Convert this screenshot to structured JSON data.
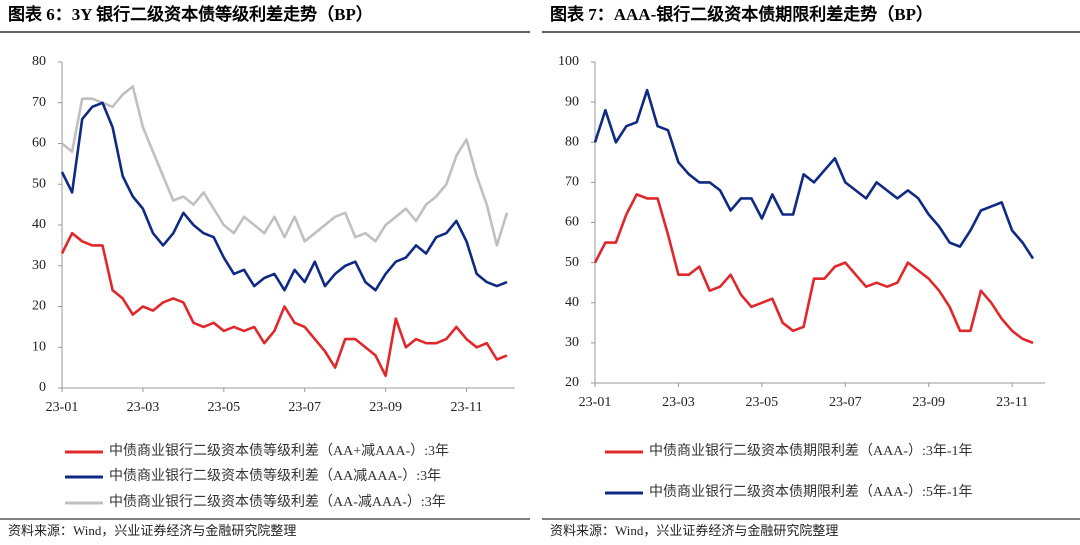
{
  "chart_data": [
    {
      "type": "line",
      "title": "图表 6：3Y 银行二级资本债等级利差走势（BP）",
      "source": "资料来源：Wind，兴业证券经济与金融研究院整理",
      "categories": [
        "23-01",
        null,
        null,
        null,
        null,
        null,
        null,
        null,
        "23-03",
        null,
        null,
        null,
        null,
        null,
        null,
        null,
        "23-05",
        null,
        null,
        null,
        null,
        null,
        null,
        null,
        "23-07",
        null,
        null,
        null,
        null,
        null,
        null,
        null,
        "23-09",
        null,
        null,
        null,
        null,
        null,
        null,
        null,
        "23-11",
        null,
        null,
        null,
        null
      ],
      "ylim": [
        0,
        80
      ],
      "yticks": [
        0,
        10,
        20,
        30,
        40,
        50,
        60,
        70,
        80
      ],
      "series": [
        {
          "name": "中债商业银行二级资本债等级利差（AA+减AAA-）:3年",
          "color": "#e0282b",
          "values": [
            33,
            38,
            36,
            35,
            35,
            24,
            22,
            18,
            20,
            19,
            21,
            22,
            21,
            16,
            15,
            16,
            14,
            15,
            14,
            15,
            11,
            14,
            20,
            16,
            15,
            12,
            9,
            5,
            12,
            12,
            10,
            8,
            3,
            17,
            10,
            12,
            11,
            11,
            12,
            15,
            12,
            10,
            11,
            7,
            8
          ]
        },
        {
          "name": "中债商业银行二级资本债等级利差（AA减AAA-）:3年",
          "color": "#102a83",
          "values": [
            53,
            48,
            66,
            69,
            70,
            64,
            52,
            47,
            44,
            38,
            35,
            38,
            43,
            40,
            38,
            37,
            32,
            28,
            29,
            25,
            27,
            28,
            24,
            29,
            26,
            31,
            25,
            28,
            30,
            31,
            26,
            24,
            28,
            31,
            32,
            35,
            33,
            37,
            38,
            41,
            36,
            28,
            26,
            25,
            26
          ]
        },
        {
          "name": "中债商业银行二级资本债等级利差（AA-减AAA-）:3年",
          "color": "#c0c0c0",
          "values": [
            60,
            58,
            71,
            71,
            70,
            69,
            72,
            74,
            64,
            58,
            52,
            46,
            47,
            45,
            48,
            44,
            40,
            38,
            42,
            40,
            38,
            42,
            37,
            42,
            36,
            38,
            40,
            42,
            43,
            37,
            38,
            36,
            40,
            42,
            44,
            41,
            45,
            47,
            50,
            57,
            61,
            52,
            45,
            35,
            43
          ]
        }
      ]
    },
    {
      "type": "line",
      "title": "图表 7：AAA-银行二级资本债期限利差走势（BP）",
      "source": "资料来源：Wind，兴业证券经济与金融研究院整理",
      "categories": [
        "23-01",
        null,
        null,
        null,
        null,
        null,
        null,
        null,
        "23-03",
        null,
        null,
        null,
        null,
        null,
        null,
        null,
        "23-05",
        null,
        null,
        null,
        null,
        null,
        null,
        null,
        "23-07",
        null,
        null,
        null,
        null,
        null,
        null,
        null,
        "23-09",
        null,
        null,
        null,
        null,
        null,
        null,
        null,
        "23-11",
        null,
        null
      ],
      "ylim": [
        20,
        100
      ],
      "yticks": [
        20,
        30,
        40,
        50,
        60,
        70,
        80,
        90,
        100
      ],
      "series": [
        {
          "name": "中债商业银行二级资本债期限利差（AAA-）:3年-1年",
          "color": "#e0282b",
          "values": [
            50,
            55,
            55,
            62,
            67,
            66,
            66,
            57,
            47,
            47,
            49,
            43,
            44,
            47,
            42,
            39,
            40,
            41,
            35,
            33,
            34,
            46,
            46,
            49,
            50,
            47,
            44,
            45,
            44,
            45,
            50,
            48,
            46,
            43,
            39,
            33,
            33,
            43,
            40,
            36,
            33,
            31,
            30
          ]
        },
        {
          "name": "中债商业银行二级资本债期限利差（AAA-）:5年-1年",
          "color": "#102a83",
          "values": [
            80,
            88,
            80,
            84,
            85,
            93,
            84,
            83,
            75,
            72,
            70,
            70,
            68,
            63,
            66,
            66,
            61,
            67,
            62,
            62,
            72,
            70,
            73,
            76,
            70,
            68,
            66,
            70,
            68,
            66,
            68,
            66,
            62,
            59,
            55,
            54,
            58,
            63,
            64,
            65,
            58,
            55,
            51
          ]
        }
      ]
    }
  ]
}
